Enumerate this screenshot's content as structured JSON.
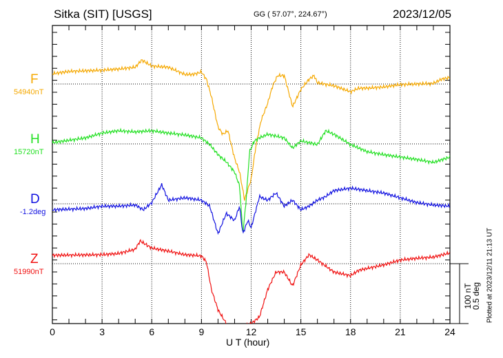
{
  "header": {
    "station": "Sitka (SIT)  [USGS]",
    "coords": "GG ( 57.07°, 224.67°)",
    "date": "2023/12/05"
  },
  "footer_note": "Plotted at 2023/12/11 21:13 UT",
  "scale_bar": {
    "nt": "100 nT",
    "deg": "0.5 deg"
  },
  "chart_data": {
    "type": "line",
    "xlabel": "U T (hour)",
    "xlim": [
      0,
      24
    ],
    "xticks": [
      "0",
      "3",
      "6",
      "9",
      "12",
      "15",
      "18",
      "21",
      "24"
    ],
    "scale": {
      "nT_per_bar": 100,
      "deg_per_bar": 0.5
    },
    "series": [
      {
        "name": "F",
        "label": "F",
        "baseline": "54940nT",
        "unit": "nT",
        "color": "#f5a800",
        "t": [
          0,
          1,
          2,
          3,
          4,
          5,
          5.4,
          6,
          7,
          8,
          8.5,
          9,
          9.3,
          9.6,
          10,
          10.3,
          10.6,
          11,
          11.3,
          11.6,
          12,
          12.3,
          12.6,
          13,
          13.3,
          13.6,
          14,
          14.5,
          15,
          15.5,
          15.8,
          16,
          17,
          18,
          18.5,
          19,
          20,
          21,
          22,
          23,
          23.5,
          24
        ],
        "v": [
          17,
          21,
          22,
          23,
          25,
          28,
          40,
          30,
          28,
          16,
          16,
          20,
          8,
          -21,
          -72,
          -84,
          -78,
          -124,
          -147,
          -193,
          -159,
          -101,
          -61,
          -32,
          -3,
          14,
          14,
          -38,
          -9,
          8,
          14,
          2,
          -3,
          -13,
          -7,
          -7,
          -5,
          -1,
          0,
          1,
          8,
          11
        ]
      },
      {
        "name": "H",
        "label": "H",
        "baseline": "15720nT",
        "unit": "nT",
        "color": "#22e022",
        "t": [
          0,
          2,
          3,
          4,
          5,
          6,
          7,
          8,
          9,
          9.5,
          10,
          10.5,
          11,
          11.3,
          11.5,
          11.7,
          11.9,
          12.2,
          12.5,
          13,
          14,
          14.5,
          15,
          16,
          16.5,
          17,
          18,
          19,
          20,
          21,
          22,
          23,
          24
        ],
        "v": [
          2,
          10,
          18,
          22,
          20,
          22,
          18,
          15,
          10,
          -1,
          -18,
          -30,
          -47,
          -70,
          -151,
          -93,
          -13,
          5,
          10,
          16,
          10,
          -7,
          5,
          -1,
          22,
          16,
          -1,
          -13,
          -18,
          -22,
          -26,
          -31,
          -22
        ]
      },
      {
        "name": "D",
        "label": "D",
        "baseline": "-1.2deg",
        "unit": "deg",
        "color": "#1010e0",
        "t": [
          0,
          2,
          3,
          4,
          5,
          5.5,
          6,
          6.6,
          7,
          8,
          9,
          9.5,
          10,
          10.5,
          11,
          11.3,
          11.5,
          11.8,
          12,
          12.5,
          13,
          13.5,
          14,
          14.5,
          15,
          15.5,
          16,
          16.5,
          17,
          18,
          19,
          20,
          21,
          22,
          23,
          24
        ],
        "v": [
          -0.05,
          -0.04,
          -0.02,
          -0.02,
          -0.01,
          -0.05,
          0.01,
          0.16,
          0.03,
          0.05,
          0.03,
          -0.02,
          -0.25,
          -0.08,
          -0.14,
          -0.02,
          -0.25,
          -0.14,
          -0.2,
          0.06,
          0.03,
          0.09,
          -0.02,
          0.03,
          -0.05,
          -0.02,
          0.03,
          0.06,
          0.11,
          0.13,
          0.11,
          0.09,
          0.05,
          0.01,
          -0.01,
          -0.02
        ]
      },
      {
        "name": "Z",
        "label": "Z",
        "baseline": "51990nT",
        "unit": "nT",
        "color": "#f01010",
        "t": [
          0,
          3,
          4,
          5,
          5.3,
          6,
          7,
          8,
          9,
          9.3,
          9.6,
          10,
          10.5,
          11,
          12,
          12.5,
          13,
          13.5,
          14,
          14.5,
          15,
          15.5,
          16,
          17,
          18,
          18.5,
          19,
          20,
          21,
          22,
          23,
          24
        ],
        "v": [
          14,
          15,
          17,
          24,
          38,
          26,
          21,
          15,
          13,
          3,
          -43,
          -77,
          -100,
          -111,
          -100,
          -89,
          -43,
          -14,
          -14,
          -37,
          -2,
          15,
          6,
          -14,
          -20,
          -11,
          -8,
          -2,
          6,
          9,
          11,
          18
        ]
      }
    ]
  }
}
